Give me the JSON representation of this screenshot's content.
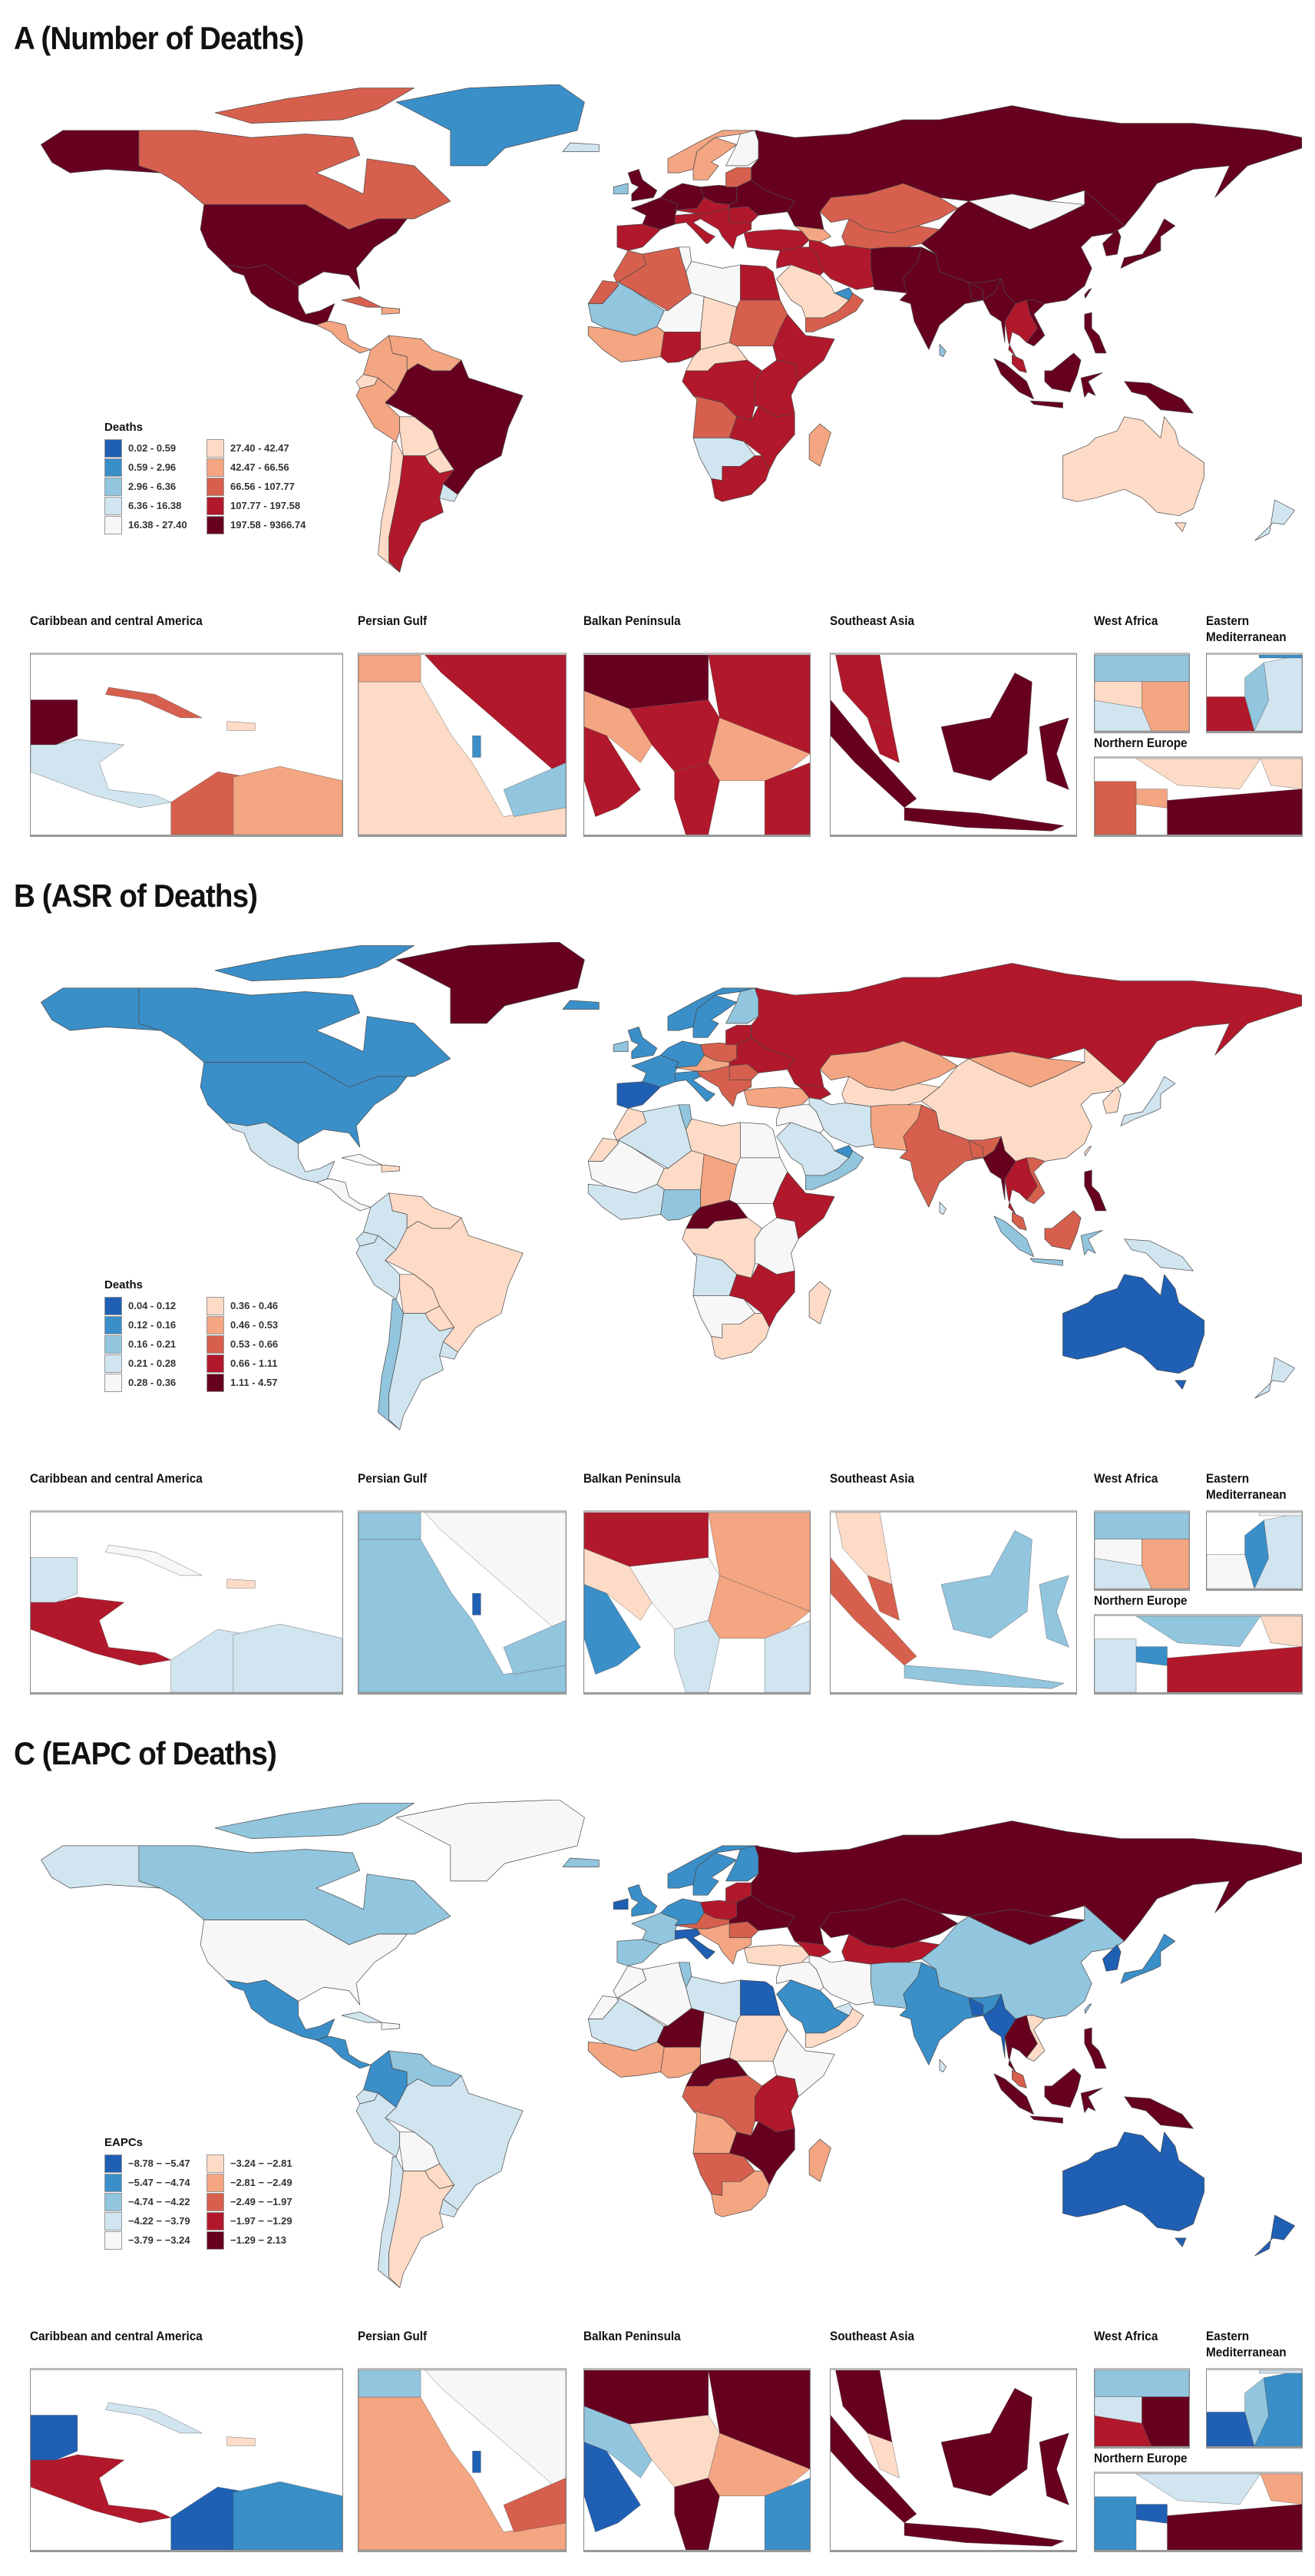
{
  "palette": [
    "#1f5fb4",
    "#3a8fc8",
    "#92c5de",
    "#d1e5f0",
    "#f7f7f7",
    "#fddbc7",
    "#f4a582",
    "#d6604d",
    "#b2182b",
    "#67001f"
  ],
  "inset_titles": {
    "caribbean": "Caribbean and central America",
    "persian": "Persian Gulf",
    "balkan": "Balkan Peninsula",
    "seasia": "Southeast Asia",
    "westafrica": "West Africa",
    "eastmed": "Eastern Mediterranean",
    "northeurope": "Northern Europe"
  },
  "panels": [
    {
      "title": "A (Number of Deaths)",
      "legend": {
        "title": "Deaths",
        "labels": [
          "0.02 - 0.59",
          "0.59 - 2.96",
          "2.96 - 6.36",
          "6.36 - 16.38",
          "16.38 - 27.40",
          "27.40 - 42.47",
          "42.47 - 66.56",
          "66.56 - 107.77",
          "107.77 - 197.58",
          "197.58 - 9366.74"
        ]
      },
      "map_classes": {
        "alaska": 9,
        "canada": 7,
        "arctic": 7,
        "greenland": 1,
        "usa": 9,
        "mexico": 9,
        "centralam": 6,
        "cuba": 7,
        "hispaniola": 6,
        "colombia": 6,
        "venezuela": 6,
        "ecuador": 5,
        "peru": 6,
        "brazil": 9,
        "bolivia": 5,
        "paraguay": 5,
        "chile": 5,
        "argentina": 8,
        "uruguay": 3,
        "iceland": 3,
        "uk": 9,
        "ireland": 2,
        "iberia": 8,
        "france": 9,
        "germany": 9,
        "italy": 8,
        "norway": 6,
        "sweden": 6,
        "finland": 4,
        "poland": 9,
        "austria": 8,
        "balkans": 8,
        "romania": 8,
        "ukraine": 9,
        "baltics": 7,
        "russia": 9,
        "turkey": 8,
        "caucasus": 6,
        "levant": 8,
        "iran": 8,
        "saudi": 5,
        "yemen": 7,
        "uae": 1,
        "kazakhstan": 7,
        "stans": 7,
        "afpak": 9,
        "india": 9,
        "bangladesh": 9,
        "china": 9,
        "mongolia": 4,
        "korea": 9,
        "japan": 9,
        "myanmar": 9,
        "thailand": 8,
        "vietnam": 9,
        "malaysia": 8,
        "sumatra": 9,
        "borneo": 9,
        "java": 9,
        "sulawesi": 9,
        "newguinea": 9,
        "philippines": 9,
        "srilanka": 2,
        "taiwan": 9,
        "australia": 5,
        "tasmania": 5,
        "nz": 3,
        "morocco": 7,
        "algeria": 7,
        "libya": 4,
        "egypt": 8,
        "tunisia": 4,
        "mauritania": 2,
        "niger": 4,
        "chad": 5,
        "sudan": 7,
        "westcoast": 6,
        "nigeria": 8,
        "ethiopia": 8,
        "car": 5,
        "drc": 8,
        "eastafrica": 8,
        "angola": 7,
        "zambiamoz": 8,
        "namibia": 3,
        "southafrica": 8,
        "madagascar": 6
      },
      "insets": {
        "caribbean": [
          9,
          7,
          5,
          3,
          7,
          6
        ],
        "persian": [
          6,
          8,
          5,
          1,
          2
        ],
        "balkan": [
          9,
          8,
          6,
          8,
          6,
          8,
          8,
          8
        ],
        "seasia": [
          8,
          8,
          9,
          9,
          9,
          9
        ],
        "westafrica": [
          2,
          5,
          6,
          3
        ],
        "eastmed": [
          8,
          2,
          3,
          1
        ],
        "northeurope": [
          5,
          6,
          7,
          9,
          5
        ]
      }
    },
    {
      "title": "B (ASR of Deaths)",
      "legend": {
        "title": "Deaths",
        "labels": [
          "0.04 - 0.12",
          "0.12 - 0.16",
          "0.16 - 0.21",
          "0.21 - 0.28",
          "0.28 - 0.36",
          "0.36 - 0.46",
          "0.46 - 0.53",
          "0.53 - 0.66",
          "0.66 - 1.11",
          "1.11 - 4.57"
        ]
      },
      "map_classes": {
        "alaska": 1,
        "canada": 1,
        "arctic": 1,
        "greenland": 9,
        "usa": 1,
        "mexico": 3,
        "centralam": 4,
        "cuba": 4,
        "hispaniola": 5,
        "colombia": 3,
        "venezuela": 5,
        "ecuador": 3,
        "peru": 3,
        "brazil": 5,
        "bolivia": 5,
        "paraguay": 5,
        "chile": 2,
        "argentina": 3,
        "uruguay": 3,
        "iceland": 1,
        "uk": 1,
        "ireland": 2,
        "iberia": 0,
        "france": 1,
        "germany": 1,
        "italy": 1,
        "norway": 1,
        "sweden": 1,
        "finland": 2,
        "poland": 7,
        "austria": 6,
        "balkans": 7,
        "romania": 7,
        "ukraine": 8,
        "baltics": 8,
        "russia": 8,
        "turkey": 6,
        "caucasus": 8,
        "levant": 4,
        "iran": 3,
        "saudi": 3,
        "yemen": 2,
        "uae": 1,
        "kazakhstan": 6,
        "stans": 5,
        "afpak": 6,
        "india": 7,
        "bangladesh": 7,
        "china": 5,
        "mongolia": 6,
        "korea": 5,
        "japan": 3,
        "myanmar": 9,
        "thailand": 8,
        "vietnam": 7,
        "malaysia": 7,
        "sumatra": 2,
        "borneo": 7,
        "java": 2,
        "sulawesi": 2,
        "newguinea": 3,
        "philippines": 9,
        "srilanka": 3,
        "taiwan": 5,
        "australia": 0,
        "tasmania": 0,
        "nz": 3,
        "morocco": 5,
        "algeria": 3,
        "libya": 5,
        "egypt": 4,
        "tunisia": 2,
        "mauritania": 4,
        "niger": 5,
        "chad": 6,
        "sudan": 4,
        "westcoast": 3,
        "nigeria": 2,
        "ethiopia": 8,
        "car": 9,
        "drc": 5,
        "eastafrica": 4,
        "angola": 3,
        "zambiamoz": 8,
        "namibia": 4,
        "southafrica": 5,
        "madagascar": 5
      },
      "insets": {
        "caribbean": [
          3,
          4,
          5,
          8,
          3,
          3
        ],
        "persian": [
          2,
          4,
          2,
          0,
          2
        ],
        "balkan": [
          8,
          6,
          5,
          4,
          6,
          1,
          3,
          3
        ],
        "seasia": [
          5,
          7,
          7,
          2,
          2,
          2
        ],
        "westafrica": [
          2,
          4,
          6,
          3
        ],
        "eastmed": [
          4,
          1,
          3,
          4
        ],
        "northeurope": [
          2,
          1,
          3,
          8,
          5
        ]
      }
    },
    {
      "title": "C (EAPC of Deaths)",
      "legend": {
        "title": "EAPCs",
        "labels": [
          "−8.78 − −5.47",
          "−5.47 − −4.74",
          "−4.74 − −4.22",
          "−4.22 − −3.79",
          "−3.79 − −3.24",
          "−3.24 − −2.81",
          "−2.81 − −2.49",
          "−2.49 − −1.97",
          "−1.97 − −1.29",
          "−1.29 − 2.13"
        ]
      },
      "map_classes": {
        "alaska": 3,
        "canada": 2,
        "arctic": 2,
        "greenland": 4,
        "usa": 4,
        "mexico": 1,
        "centralam": 1,
        "cuba": 3,
        "hispaniola": 4,
        "colombia": 1,
        "venezuela": 2,
        "ecuador": 3,
        "peru": 3,
        "brazil": 3,
        "bolivia": 4,
        "paraguay": 5,
        "chile": 3,
        "argentina": 5,
        "uruguay": 3,
        "iceland": 2,
        "uk": 1,
        "ireland": 0,
        "iberia": 2,
        "france": 2,
        "germany": 1,
        "italy": 0,
        "norway": 1,
        "sweden": 1,
        "finland": 1,
        "poland": 8,
        "austria": 7,
        "balkans": 6,
        "romania": 7,
        "ukraine": 9,
        "baltics": 8,
        "russia": 9,
        "turkey": 5,
        "caucasus": 8,
        "levant": 4,
        "iran": 4,
        "saudi": 1,
        "yemen": 5,
        "uae": 3,
        "kazakhstan": 9,
        "stans": 8,
        "afpak": 2,
        "india": 1,
        "bangladesh": 0,
        "china": 2,
        "mongolia": 9,
        "korea": 0,
        "japan": 1,
        "myanmar": 0,
        "thailand": 9,
        "vietnam": 5,
        "malaysia": 7,
        "sumatra": 9,
        "borneo": 9,
        "java": 9,
        "sulawesi": 9,
        "newguinea": 9,
        "philippines": 9,
        "srilanka": 3,
        "taiwan": 2,
        "australia": 0,
        "tasmania": 0,
        "nz": 0,
        "morocco": 4,
        "algeria": 4,
        "libya": 3,
        "egypt": 0,
        "tunisia": 2,
        "mauritania": 3,
        "niger": 9,
        "chad": 4,
        "sudan": 5,
        "westcoast": 6,
        "nigeria": 6,
        "ethiopia": 4,
        "car": 9,
        "drc": 7,
        "eastafrica": 8,
        "angola": 6,
        "zambiamoz": 9,
        "namibia": 7,
        "southafrica": 6,
        "madagascar": 6
      },
      "insets": {
        "caribbean": [
          0,
          3,
          5,
          8,
          0,
          1
        ],
        "persian": [
          2,
          4,
          6,
          0,
          7
        ],
        "balkan": [
          9,
          9,
          2,
          5,
          6,
          0,
          9,
          1
        ],
        "seasia": [
          9,
          5,
          9,
          9,
          9,
          9
        ],
        "westafrica": [
          2,
          3,
          9,
          8
        ],
        "eastmed": [
          0,
          2,
          1,
          3
        ],
        "northeurope": [
          3,
          0,
          1,
          9,
          6
        ]
      }
    }
  ]
}
